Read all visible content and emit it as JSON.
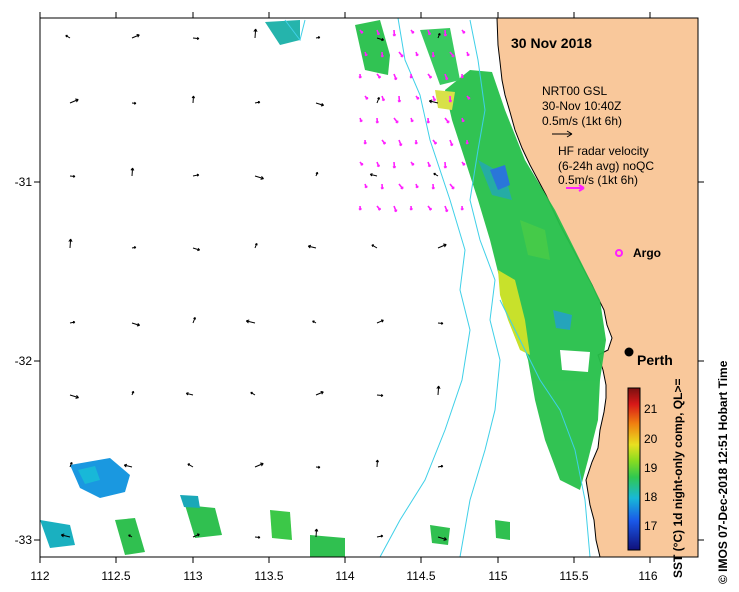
{
  "map": {
    "title": "30 Nov 2018",
    "x_ticks": [
      "112",
      "112.5",
      "113",
      "113.5",
      "114",
      "114.5",
      "115",
      "115.5",
      "116"
    ],
    "y_ticks": [
      "-31",
      "-32",
      "-33"
    ],
    "colors": {
      "land": "#f9c89b",
      "bathy": "#3fd0e8",
      "hf_vector": "#ff20ff",
      "nrt_vector": "#000000"
    }
  },
  "legend": {
    "nrt_line1": "NRT00 GSL",
    "nrt_line2": "30-Nov 10:40Z",
    "nrt_scale": "0.5m/s (1kt 6h)",
    "hf_line1": "HF radar velocity",
    "hf_line2": "(6-24h avg) noQC",
    "hf_scale": "0.5m/s (1kt 6h)"
  },
  "places": {
    "argo": "Argo",
    "perth": "Perth"
  },
  "colorbar": {
    "ticks": [
      "21",
      "20",
      "19",
      "18",
      "17"
    ],
    "label": "SST (°C) 1d night-only comp, QL>="
  },
  "credit": "© IMOS 07-Dec-2018 12:51 Hobart Time"
}
